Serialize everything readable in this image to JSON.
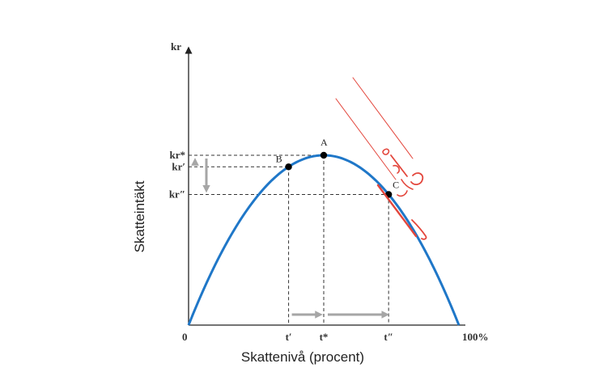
{
  "chart_data": {
    "type": "line",
    "title": "",
    "xlabel": "Skattenivå (procent)",
    "ylabel": "Skatteintäkt",
    "y_unit": "kr",
    "x_end_label": "100%",
    "origin_label": "0",
    "xlim": [
      0,
      100
    ],
    "ylim": [
      0,
      100
    ],
    "grid": false,
    "series": [
      {
        "x": [
          0,
          10,
          20,
          30,
          40,
          50,
          60,
          70,
          80,
          90,
          100
        ],
        "y": [
          0,
          36,
          64,
          84,
          96,
          100,
          96,
          84,
          64,
          36,
          0
        ]
      }
    ],
    "points": [
      {
        "label": "A",
        "x": 50,
        "y": 100
      },
      {
        "label": "B",
        "x": 37,
        "y": 93.2
      },
      {
        "label": "C",
        "x": 74,
        "y": 76.9
      }
    ],
    "x_ticks": [
      {
        "label": "t′",
        "x": 37
      },
      {
        "label": "t*",
        "x": 50
      },
      {
        "label": "t″",
        "x": 74
      }
    ],
    "y_ticks": [
      {
        "label": "kr*",
        "y": 100
      },
      {
        "label": "kr′",
        "y": 93.2
      },
      {
        "label": "kr″",
        "y": 76.9
      }
    ],
    "colors": {
      "curve": "#1f77c8",
      "guide": "#333333",
      "arrow": "#a6a6a6",
      "annotation": "#e3463c"
    }
  }
}
